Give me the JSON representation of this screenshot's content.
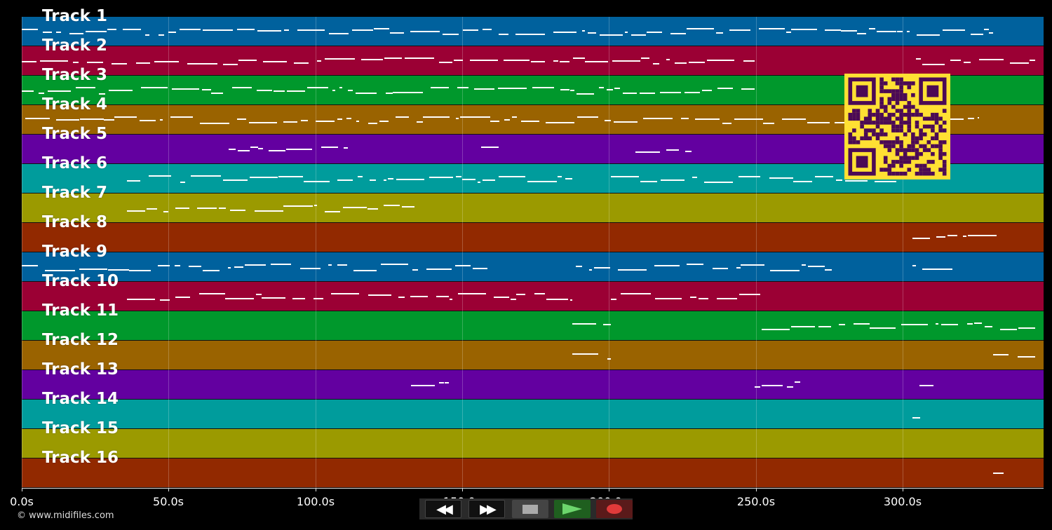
{
  "app": {
    "copyright": "© www.midifiles.com"
  },
  "time_axis": {
    "ticks": [
      "0.0s",
      "50.0s",
      "100.0s",
      "150.0s",
      "200.0s",
      "250.0s",
      "300.0s"
    ]
  },
  "tracks": [
    {
      "label": "Track 1",
      "color": "#00619d"
    },
    {
      "label": "Track 2",
      "color": "#9b0034"
    },
    {
      "label": "Track 3",
      "color": "#00982c"
    },
    {
      "label": "Track 4",
      "color": "#9a6300"
    },
    {
      "label": "Track 5",
      "color": "#6300a0"
    },
    {
      "label": "Track 6",
      "color": "#009c9c"
    },
    {
      "label": "Track 7",
      "color": "#9b9a00"
    },
    {
      "label": "Track 8",
      "color": "#922900"
    },
    {
      "label": "Track 9",
      "color": "#00619d"
    },
    {
      "label": "Track 10",
      "color": "#9b0034"
    },
    {
      "label": "Track 11",
      "color": "#00982c"
    },
    {
      "label": "Track 12",
      "color": "#9a6300"
    },
    {
      "label": "Track 13",
      "color": "#6300a0"
    },
    {
      "label": "Track 14",
      "color": "#009c9c"
    },
    {
      "label": "Track 15",
      "color": "#9b9a00"
    },
    {
      "label": "Track 16",
      "color": "#922900"
    }
  ],
  "qr_code": {
    "icon": "qr-code-icon",
    "background": "#ffe033",
    "foreground": "#4b0a55"
  },
  "transport": {
    "buttons": [
      {
        "name": "rewind-button",
        "icon": "rewind-icon"
      },
      {
        "name": "fast-forward-button",
        "icon": "fast-forward-icon"
      },
      {
        "name": "stop-button",
        "icon": "stop-icon"
      },
      {
        "name": "play-button",
        "icon": "play-icon"
      },
      {
        "name": "record-button",
        "icon": "record-icon"
      }
    ]
  }
}
